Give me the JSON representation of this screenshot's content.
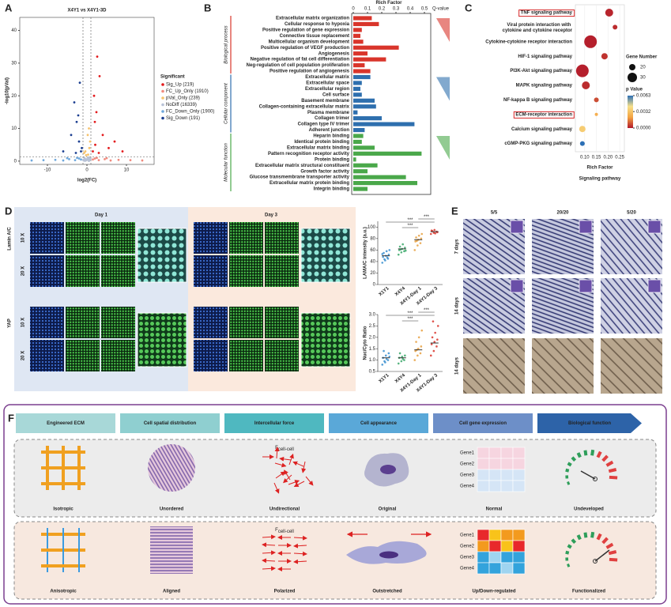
{
  "panel_labels": [
    "A",
    "B",
    "C",
    "D",
    "E",
    "F"
  ],
  "chart_data": [
    {
      "type": "scatter",
      "title": "X4Y1 vs X4Y1-3D",
      "x_label": "log2(FC)",
      "y_label": "-log10(pVal)",
      "xlim": [
        -17,
        17
      ],
      "ylim": [
        -1,
        44
      ],
      "xticks": [
        -10,
        0,
        10
      ],
      "yticks": [
        0,
        10,
        20,
        30,
        40
      ],
      "vlines": [
        -1,
        1
      ],
      "hline": 1.3,
      "legend_title": "Significant",
      "series": [
        {
          "name": "Sig_Up (219)",
          "color": "#e31a1c",
          "x": [
            1.5,
            2.1,
            2.6,
            3.2,
            4.0,
            2.0,
            1.8,
            5.5,
            7.0,
            2.4,
            3.0,
            9.0
          ],
          "y": [
            3,
            5,
            32,
            26,
            8,
            12,
            20,
            4,
            6,
            15,
            2.5,
            3
          ]
        },
        {
          "name": "FC_Up_Only (1910)",
          "color": "#f08a7e",
          "x": [
            1.5,
            2,
            3,
            4.5,
            6,
            8,
            11,
            14,
            2.5,
            5
          ],
          "y": [
            0.5,
            0.8,
            0.3,
            0.6,
            0.2,
            0.4,
            0.3,
            0.2,
            1.0,
            0.9
          ]
        },
        {
          "name": "pVal_Only (239)",
          "color": "#f6c26b",
          "x": [
            0.3,
            -0.4,
            0.6,
            -0.7,
            0.8,
            0.2,
            -0.2,
            0.5
          ],
          "y": [
            2,
            3,
            4,
            2.5,
            6,
            8,
            1.8,
            10
          ]
        },
        {
          "name": "NoDiff (16339)",
          "color": "#b8c2d6",
          "x": [
            -0.9,
            -0.6,
            -0.3,
            0,
            0.3,
            0.6,
            0.9,
            -0.5,
            0.2,
            0.7,
            -0.8,
            0.4,
            -0.1,
            0.5,
            -0.4
          ],
          "y": [
            0.4,
            0.9,
            0.2,
            0.6,
            1.0,
            0.3,
            0.7,
            0.1,
            0.5,
            0.8,
            0.2,
            1.1,
            0.3,
            0.05,
            0.6
          ]
        },
        {
          "name": "FC_Down_Only (1900)",
          "color": "#6fa8dc",
          "x": [
            -1.5,
            -2,
            -3,
            -4.5,
            -6,
            -8,
            -11,
            -14,
            -2.5,
            -5
          ],
          "y": [
            0.5,
            0.8,
            0.3,
            0.6,
            0.2,
            0.4,
            0.3,
            0.2,
            1.0,
            0.9
          ]
        },
        {
          "name": "Sig_Down (191)",
          "color": "#1c3f91",
          "x": [
            -1.5,
            -2,
            -2.6,
            -3.2,
            -1.8,
            -4,
            -2.2,
            -1.3,
            -2.8,
            -6
          ],
          "y": [
            3,
            6,
            12,
            18,
            24,
            8,
            14,
            4,
            2.5,
            3
          ]
        }
      ]
    },
    {
      "type": "hbar",
      "x_label": "Rich Factor",
      "legend_title": "Q-value",
      "xlim": [
        0,
        0.5
      ],
      "xticks": [
        0,
        0.1,
        0.2,
        0.3,
        0.4,
        0.5
      ],
      "groups": [
        {
          "name": "Biological process",
          "color": "#d9352b",
          "categories": [
            "Extracellular matrix organization",
            "Cellular response to hypoxia",
            "Positive regulation of gene expression",
            "Connective tissue replacement",
            "Multicellular organism development",
            "Positive regulation of VEGF production",
            "Angiogenesis",
            "Negative regulation of fat cell differentiation",
            "Neg-regulation of cell population proliferation",
            "Positive regulation of angiogenesis"
          ],
          "values": [
            0.13,
            0.18,
            0.06,
            0.05,
            0.07,
            0.32,
            0.1,
            0.23,
            0.08,
            0.12
          ],
          "label_colors": [
            "#d62728",
            "#d62728",
            "#222222",
            "#222222",
            "#d62728",
            "#d62728",
            "#d62728",
            "#d62728",
            "#222222",
            "#d62728"
          ]
        },
        {
          "name": "Cellular component",
          "color": "#2e6fae",
          "categories": [
            "Extracellular matrix",
            "Extracellular space",
            "Extracellular region",
            "Cell surface",
            "Basement membrane",
            "Collagen-containing extracellular matrix",
            "Plasma membrane",
            "Collagen trimer",
            "Collagen type IV trimer",
            "Adherent junction"
          ],
          "values": [
            0.12,
            0.06,
            0.05,
            0.06,
            0.15,
            0.16,
            0.03,
            0.2,
            0.43,
            0.08
          ],
          "label_colors": [
            "#1f6fb4",
            "#222222",
            "#222222",
            "#222222",
            "#222222",
            "#1f6fb4",
            "#222222",
            "#1f6fb4",
            "#1f6fb4",
            "#1f6fb4"
          ]
        },
        {
          "name": "Molecular function",
          "color": "#4aa84a",
          "categories": [
            "Heparin binding",
            "Identical protein binding",
            "Extracellular matrix binding",
            "Pattern recognition receptor activity",
            "Protein binding",
            "Extracellular matrix structural constituent",
            "Growth factor activity",
            "Glucose transmembrane transporter activity",
            "Extracellular matrix protein binding",
            "Integrin binding"
          ],
          "values": [
            0.07,
            0.06,
            0.15,
            0.48,
            0.02,
            0.17,
            0.1,
            0.37,
            0.45,
            0.1
          ],
          "label_colors": [
            "#222222",
            "#3fa33f",
            "#3fa33f",
            "#222222",
            "#222222",
            "#3fa33f",
            "#222222",
            "#222222",
            "#3fa33f",
            "#3fa33f"
          ]
        }
      ]
    },
    {
      "type": "bubble",
      "x_label": "Rich Factor",
      "caption": "Signaling pathway",
      "categories": [
        "TNF signaling pathway",
        "Viral protein interaction with cytokine and cytokine receptor",
        "Cytokine-cytokine receptor interaction",
        "HIF-1 signaling pathway",
        "PI3K-Akt signaling pathway",
        "MAPK signaling pathway",
        "NF-kappa B signaling pathway",
        "ECM-receptor interaction",
        "Calcium signaling pathway",
        "cGMP-PKG signaling pathway"
      ],
      "x": [
        0.205,
        0.23,
        0.125,
        0.185,
        0.09,
        0.105,
        0.15,
        0.15,
        0.09,
        0.09
      ],
      "sizes": [
        25,
        15,
        40,
        20,
        40,
        25,
        15,
        10,
        20,
        15
      ],
      "p_values": [
        0.0002,
        0.0003,
        0.0001,
        0.0004,
        0.0001,
        0.0003,
        0.0008,
        0.0025,
        0.0035,
        0.0063
      ],
      "boxed": [
        true,
        false,
        false,
        false,
        false,
        false,
        false,
        true,
        false,
        false
      ],
      "box_color": "#d62728",
      "xlim": [
        0.06,
        0.27
      ],
      "xticks": [
        {
          "value": 0.1,
          "label": "0.10"
        },
        0.15,
        {
          "value": 0.2,
          "label": "0.20"
        },
        0.25
      ],
      "size_legend_title": "Gene Number",
      "size_legend": [
        20,
        30
      ],
      "color_legend_title": "p Value",
      "clim": [
        0,
        0.0063
      ],
      "colormap": [
        "#b2182b",
        "#f4a442",
        "#f7e08a",
        "#2c6fb5"
      ],
      "color_ticks": [
        0.0063,
        0.0032,
        {
          "value": 0,
          "label": "0.0000"
        }
      ]
    },
    {
      "type": "dot",
      "y_label": "LAMA/C intensity (a.u.)",
      "categories": [
        "X1Y1",
        "X4Y4",
        "X4Y1-Day 1",
        "X4Y1-Day 3"
      ],
      "colors": [
        "#3a8fd0",
        "#3aa86a",
        "#e8a040",
        "#d9352b"
      ],
      "values": [
        50,
        62,
        78,
        92
      ],
      "points": [
        [
          38,
          42,
          45,
          48,
          50,
          52,
          55,
          58,
          60,
          44,
          47,
          53
        ],
        [
          52,
          56,
          58,
          60,
          62,
          64,
          66,
          70,
          59,
          61
        ],
        [
          60,
          68,
          72,
          75,
          78,
          80,
          82,
          85,
          88,
          76
        ],
        [
          88,
          90,
          92,
          94,
          95,
          91,
          93,
          89
        ]
      ],
      "ylim": [
        0,
        110
      ],
      "yticks": [
        0,
        20,
        40,
        60,
        80,
        100
      ],
      "annotations": [
        "***",
        "***",
        "***"
      ]
    },
    {
      "type": "dot",
      "y_label": "Nuc/Cyto Ratio",
      "categories": [
        "X1Y1",
        "X4Y4",
        "X4Y1-Day 1",
        "X4Y1-Day 3"
      ],
      "colors": [
        "#3a8fd0",
        "#3aa86a",
        "#e8a040",
        "#d9352b"
      ],
      "values": [
        1.1,
        1.1,
        1.45,
        1.75
      ],
      "points": [
        [
          0.8,
          0.9,
          1.0,
          1.1,
          1.2,
          1.3,
          1.4,
          1.05,
          1.15,
          0.95
        ],
        [
          0.85,
          0.95,
          1.0,
          1.1,
          1.15,
          1.2,
          1.3,
          1.05
        ],
        [
          1.0,
          1.2,
          1.3,
          1.4,
          1.5,
          1.6,
          1.8,
          2.0,
          2.3,
          1.45
        ],
        [
          1.2,
          1.4,
          1.6,
          1.7,
          1.8,
          1.9,
          2.0,
          2.2,
          2.5,
          2.7
        ]
      ],
      "ylim": [
        0.5,
        3.0
      ],
      "yticks": [
        0.5,
        {
          "value": 1,
          "label": "1.0"
        },
        1.5,
        {
          "value": 2,
          "label": "2.0"
        },
        2.5,
        {
          "value": 3,
          "label": "3.0"
        }
      ],
      "annotations": [
        "***",
        "***",
        "***"
      ]
    }
  ],
  "panel_d": {
    "days": [
      "Day 1",
      "Day 3"
    ],
    "stains": [
      "Lamin A/C",
      "YAP"
    ],
    "magnifications": [
      "10 X",
      "20 X"
    ]
  },
  "panel_e": {
    "columns": [
      "5/5",
      "20/20",
      "5/20"
    ],
    "rows": [
      "7 days",
      "14 days",
      "14 days"
    ]
  },
  "panel_f": {
    "steps": [
      "Engineered ECM",
      "Cell spatial distribution",
      "Intercellular force",
      "Cell appearance",
      "Cell gene expression",
      "Biological function"
    ],
    "step_colors": [
      "#a8d8d8",
      "#8fcfd0",
      "#4fb8c0",
      "#5aa8d8",
      "#6d8fc8",
      "#2d63a8"
    ],
    "force": {
      "symbol": "F",
      "subscript": "cell-cell"
    },
    "genes": [
      "Gene1",
      "Gene2",
      "Gene3",
      "Gene4"
    ],
    "rows": [
      {
        "labels": [
          "Isotropic",
          "Unordered",
          "Undirectional",
          "Original",
          "Normal",
          "Undeveloped"
        ],
        "heatmap_colors": [
          [
            "#f6d5e0",
            "#f6d5e0",
            "#f6d5e0",
            "#f6d5e0"
          ],
          [
            "#f6d5e0",
            "#f6d5e0",
            "#f6d5e0",
            "#f6d5e0"
          ],
          [
            "#d5e5f6",
            "#d5e5f6",
            "#d5e5f6",
            "#d5e5f6"
          ],
          [
            "#d5e5f6",
            "#d5e5f6",
            "#d5e5f6",
            "#d5e5f6"
          ]
        ]
      },
      {
        "labels": [
          "Anisotropic",
          "Aligned",
          "Polarized",
          "Outstretched",
          "Up/Down-regulated",
          "Functionalized"
        ],
        "heatmap_colors": [
          [
            "#e8282b",
            "#f9c31a",
            "#f39a1e",
            "#f39a1e"
          ],
          [
            "#f39a1e",
            "#e8282b",
            "#f9c31a",
            "#e8282b"
          ],
          [
            "#33a3dc",
            "#9fd4f0",
            "#33a3dc",
            "#33a3dc"
          ],
          [
            "#33a3dc",
            "#33a3dc",
            "#9fd4f0",
            "#33a3dc"
          ]
        ]
      }
    ]
  }
}
